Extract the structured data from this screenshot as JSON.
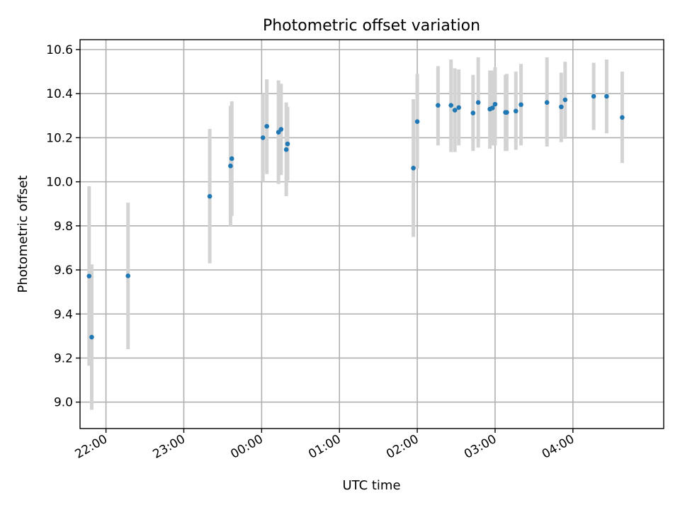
{
  "chart_data": {
    "type": "scatter",
    "title": "Photometric offset variation",
    "xlabel": "UTC time",
    "ylabel": "Photometric offset",
    "xlim": [
      "21:40",
      "05:10"
    ],
    "ylim": [
      8.88,
      10.645
    ],
    "x_ticks": [
      "22:00",
      "23:00",
      "00:00",
      "01:00",
      "02:00",
      "03:00",
      "04:00"
    ],
    "y_ticks": [
      9.0,
      9.2,
      9.4,
      9.6,
      9.8,
      10.0,
      10.2,
      10.4,
      10.6
    ],
    "y_tick_labels": [
      "9.0",
      "9.2",
      "9.4",
      "9.6",
      "9.8",
      "10.0",
      "10.2",
      "10.4",
      "10.6"
    ],
    "grid": true,
    "colors": {
      "point": "#1f77b4",
      "errorbar": "#d3d3d3"
    },
    "series": [
      {
        "points": [
          {
            "t": "21:47",
            "y": 9.572,
            "lo": 9.165,
            "hi": 9.98
          },
          {
            "t": "21:49",
            "y": 9.295,
            "lo": 8.965,
            "hi": 9.625
          },
          {
            "t": "22:17",
            "y": 9.573,
            "lo": 9.24,
            "hi": 9.905
          },
          {
            "t": "23:20",
            "y": 9.934,
            "lo": 9.63,
            "hi": 10.24
          },
          {
            "t": "23:36",
            "y": 10.072,
            "lo": 9.8,
            "hi": 10.345
          },
          {
            "t": "23:37",
            "y": 10.105,
            "lo": 9.845,
            "hi": 10.365
          },
          {
            "t": "00:01",
            "y": 10.2,
            "lo": 10.0,
            "hi": 10.4
          },
          {
            "t": "00:04",
            "y": 10.252,
            "lo": 10.035,
            "hi": 10.465
          },
          {
            "t": "00:13",
            "y": 10.225,
            "lo": 9.99,
            "hi": 10.46
          },
          {
            "t": "00:15",
            "y": 10.238,
            "lo": 10.03,
            "hi": 10.445
          },
          {
            "t": "00:19",
            "y": 10.146,
            "lo": 9.935,
            "hi": 10.36
          },
          {
            "t": "00:20",
            "y": 10.172,
            "lo": 10.005,
            "hi": 10.34
          },
          {
            "t": "01:57",
            "y": 10.062,
            "lo": 9.75,
            "hi": 10.375
          },
          {
            "t": "02:00",
            "y": 10.273,
            "lo": 10.06,
            "hi": 10.49
          },
          {
            "t": "02:16",
            "y": 10.347,
            "lo": 10.165,
            "hi": 10.525
          },
          {
            "t": "02:26",
            "y": 10.347,
            "lo": 10.135,
            "hi": 10.555
          },
          {
            "t": "02:29",
            "y": 10.325,
            "lo": 10.135,
            "hi": 10.515
          },
          {
            "t": "02:32",
            "y": 10.337,
            "lo": 10.165,
            "hi": 10.51
          },
          {
            "t": "02:43",
            "y": 10.312,
            "lo": 10.14,
            "hi": 10.485
          },
          {
            "t": "02:47",
            "y": 10.36,
            "lo": 10.155,
            "hi": 10.565
          },
          {
            "t": "02:56",
            "y": 10.33,
            "lo": 10.15,
            "hi": 10.505
          },
          {
            "t": "02:58",
            "y": 10.335,
            "lo": 10.165,
            "hi": 10.505
          },
          {
            "t": "03:00",
            "y": 10.352,
            "lo": 10.165,
            "hi": 10.52
          },
          {
            "t": "03:08",
            "y": 10.315,
            "lo": 10.14,
            "hi": 10.485
          },
          {
            "t": "03:09",
            "y": 10.315,
            "lo": 10.14,
            "hi": 10.49
          },
          {
            "t": "03:16",
            "y": 10.321,
            "lo": 10.145,
            "hi": 10.5
          },
          {
            "t": "03:20",
            "y": 10.35,
            "lo": 10.165,
            "hi": 10.535
          },
          {
            "t": "03:40",
            "y": 10.36,
            "lo": 10.16,
            "hi": 10.565
          },
          {
            "t": "03:51",
            "y": 10.34,
            "lo": 10.18,
            "hi": 10.495
          },
          {
            "t": "03:54",
            "y": 10.372,
            "lo": 10.195,
            "hi": 10.545
          },
          {
            "t": "04:16",
            "y": 10.388,
            "lo": 10.235,
            "hi": 10.54
          },
          {
            "t": "04:26",
            "y": 10.388,
            "lo": 10.22,
            "hi": 10.555
          },
          {
            "t": "04:38",
            "y": 10.292,
            "lo": 10.085,
            "hi": 10.5
          }
        ]
      }
    ]
  }
}
